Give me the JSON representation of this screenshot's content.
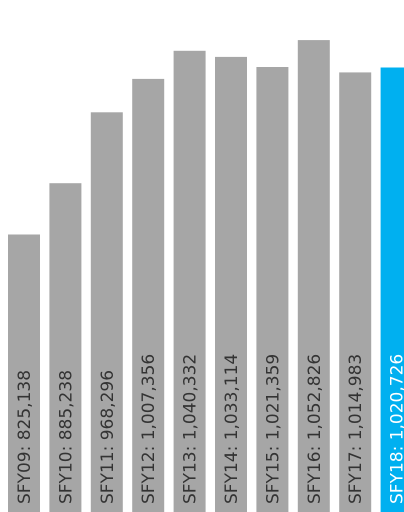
{
  "chart_data": {
    "type": "bar",
    "orientation": "vertical",
    "categories": [
      "SFY09",
      "SFY10",
      "SFY11",
      "SFY12",
      "SFY13",
      "SFY14",
      "SFY15",
      "SFY16",
      "SFY17",
      "SFY18"
    ],
    "values": [
      825138,
      885238,
      968296,
      1007356,
      1040332,
      1033114,
      1021359,
      1052826,
      1014983,
      1020726
    ],
    "labels": [
      "SFY09: 825,138",
      "SFY10: 885,238",
      "SFY11: 968,296",
      "SFY12: 1,007,356",
      "SFY13: 1,040,332",
      "SFY14: 1,033,114",
      "SFY15: 1,021,359",
      "SFY16: 1,052,826",
      "SFY17: 1,014,983",
      "SFY18: 1,020,726"
    ],
    "highlight_index": 9,
    "colors": {
      "default": "#a6a6a6",
      "highlight": "#00b0f0"
    },
    "title": "",
    "xlabel": "",
    "ylabel": "",
    "ylim": [
      500000,
      1060000
    ],
    "grid": false,
    "legend": "none"
  }
}
